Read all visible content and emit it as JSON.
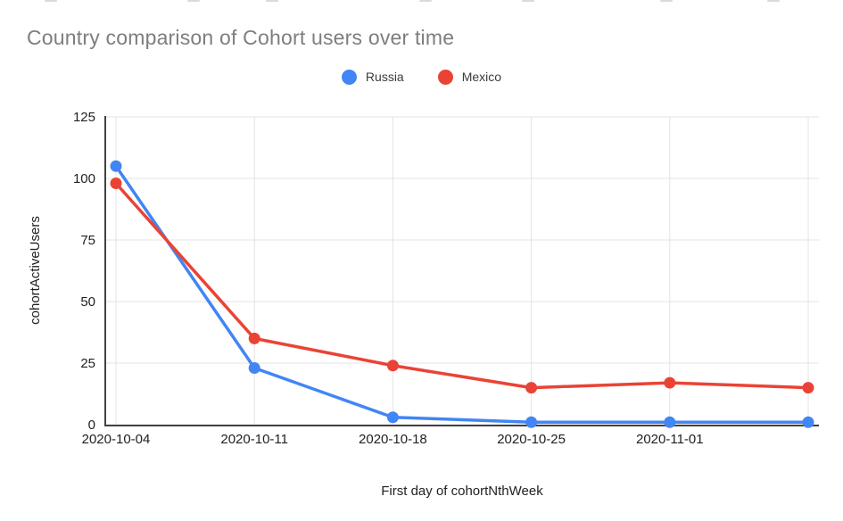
{
  "chart": {
    "title": "Country comparison of Cohort users over time",
    "x_axis_title": "First day of cohortNthWeek",
    "y_axis_title": "cohortActiveUsers",
    "legend": [
      {
        "label": "Russia",
        "color": "#4285F4"
      },
      {
        "label": "Mexico",
        "color": "#EA4335"
      }
    ]
  },
  "chart_data": {
    "type": "line",
    "title": "Country comparison of Cohort users over time",
    "xlabel": "First day of cohortNthWeek",
    "ylabel": "cohortActiveUsers",
    "categories": [
      "2020-10-04",
      "2020-10-11",
      "2020-10-18",
      "2020-10-25",
      "2020-11-01",
      ""
    ],
    "series": [
      {
        "name": "Russia",
        "color": "#4285F4",
        "values": [
          105,
          23,
          3,
          1,
          1,
          1
        ]
      },
      {
        "name": "Mexico",
        "color": "#EA4335",
        "values": [
          98,
          35,
          24,
          15,
          17,
          15
        ]
      }
    ],
    "ylim": [
      0,
      125
    ],
    "yticks": [
      0,
      25,
      50,
      75,
      100,
      125
    ],
    "grid": true,
    "legend_position": "top-center",
    "colors": {
      "gridline": "#e3e3e3",
      "axis_line": "#424242",
      "tick_text": "#202124",
      "title_text": "#7e7e7e"
    }
  }
}
